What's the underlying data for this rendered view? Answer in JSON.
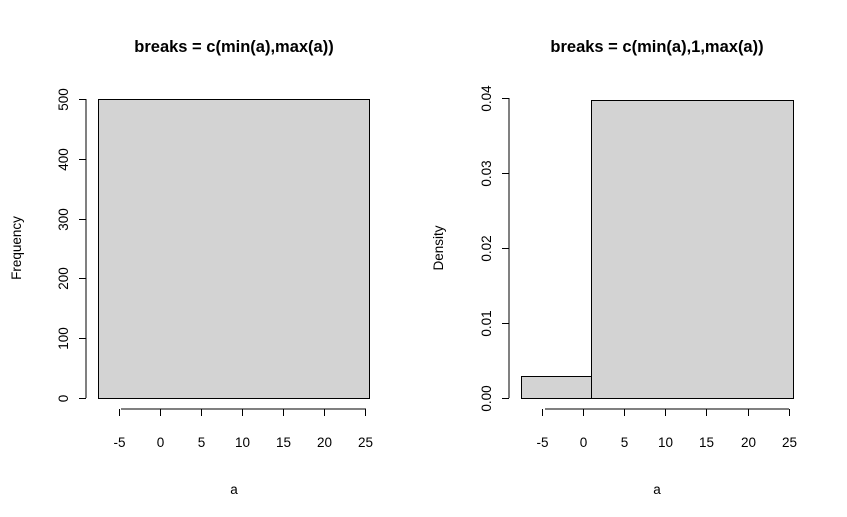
{
  "colors": {
    "bar_fill": "#d3d3d3",
    "bar_stroke": "#000000",
    "background": "#ffffff"
  },
  "chart_data": [
    {
      "type": "bar",
      "title": "breaks = c(min(a),max(a))",
      "xlabel": "a",
      "ylabel": "Frequency",
      "xlim": [
        -7.5,
        25.5
      ],
      "ylim": [
        0,
        500
      ],
      "xticks": [
        -5,
        0,
        5,
        10,
        15,
        20,
        25
      ],
      "yticks": [
        0,
        100,
        200,
        300,
        400,
        500
      ],
      "xtick_labels": [
        "-5",
        "0",
        "5",
        "10",
        "15",
        "20",
        "25"
      ],
      "ytick_labels": [
        "0",
        "100",
        "200",
        "300",
        "400",
        "500"
      ],
      "bins": [
        {
          "x0": -7.5,
          "x1": 25.5,
          "value": 500
        }
      ],
      "grid": false,
      "legend": "none"
    },
    {
      "type": "bar",
      "title": "breaks = c(min(a),1,max(a))",
      "xlabel": "a",
      "ylabel": "Density",
      "xlim": [
        -7.5,
        25.5
      ],
      "ylim": [
        0,
        0.04
      ],
      "xticks": [
        -5,
        0,
        5,
        10,
        15,
        20,
        25
      ],
      "yticks": [
        0,
        0.01,
        0.02,
        0.03,
        0.04
      ],
      "xtick_labels": [
        "-5",
        "0",
        "5",
        "10",
        "15",
        "20",
        "25"
      ],
      "ytick_labels": [
        "0.00",
        "0.01",
        "0.02",
        "0.03",
        "0.04"
      ],
      "bins": [
        {
          "x0": -7.5,
          "x1": 1,
          "value": 0.003
        },
        {
          "x0": 1,
          "x1": 25.5,
          "value": 0.0397
        }
      ],
      "grid": false,
      "legend": "none"
    }
  ]
}
